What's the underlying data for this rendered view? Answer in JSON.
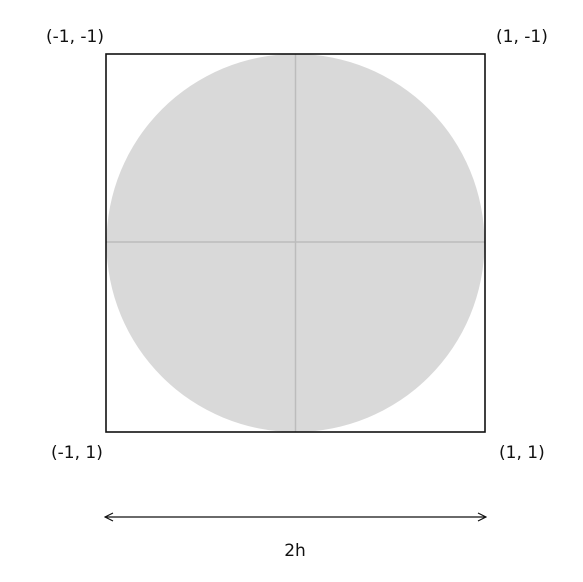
{
  "corners": {
    "top_left": "(-1, -1)",
    "top_right": "(1, -1)",
    "bottom_left": "(-1, 1)",
    "bottom_right": "(1, 1)"
  },
  "width_label": "2h",
  "colors": {
    "circle_fill": "#d9d9d9",
    "axis_lines": "#bcbcbc",
    "square_stroke": "#111111",
    "text": "#111111"
  }
}
